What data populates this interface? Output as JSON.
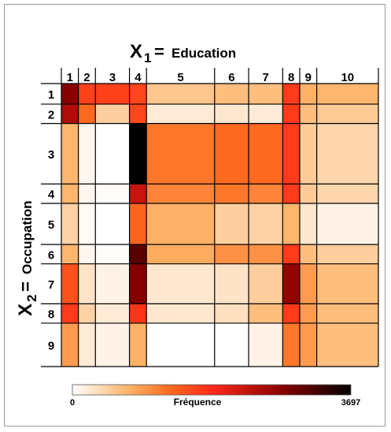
{
  "chart_data": {
    "type": "heatmap",
    "title": "",
    "x_variable": {
      "symbol": "X",
      "subscript": "1",
      "equals": "=",
      "name": "Education"
    },
    "y_variable": {
      "symbol": "X",
      "subscript": "2",
      "equals": "=",
      "name": "Occupation"
    },
    "x_categories": [
      "1",
      "2",
      "3",
      "4",
      "5",
      "6",
      "7",
      "8",
      "9",
      "10"
    ],
    "y_categories": [
      "1",
      "2",
      "3",
      "4",
      "5",
      "6",
      "7",
      "8",
      "9"
    ],
    "x_marginal_share": [
      0.0537,
      0.0537,
      0.1074,
      0.0537,
      0.2148,
      0.1074,
      0.1074,
      0.0537,
      0.0537,
      0.0537
    ],
    "y_marginal_share": [
      0.0726,
      0.0685,
      0.2137,
      0.0685,
      0.1452,
      0.0685,
      0.1411,
      0.0685,
      0.1452
    ],
    "values": [
      [
        2800,
        1650,
        1650,
        1600,
        560,
        640,
        640,
        1700,
        760,
        720
      ],
      [
        2500,
        1300,
        480,
        1600,
        200,
        240,
        200,
        1700,
        640,
        520
      ],
      [
        720,
        80,
        0,
        3697,
        1200,
        1300,
        1300,
        1700,
        520,
        400
      ],
      [
        720,
        80,
        30,
        2300,
        1100,
        1200,
        1100,
        1700,
        520,
        400
      ],
      [
        440,
        50,
        0,
        1350,
        760,
        480,
        440,
        720,
        240,
        120
      ],
      [
        720,
        80,
        30,
        3100,
        800,
        1000,
        1000,
        1700,
        640,
        480
      ],
      [
        1500,
        280,
        120,
        2800,
        240,
        280,
        480,
        2700,
        920,
        640
      ],
      [
        1700,
        440,
        200,
        1750,
        240,
        320,
        640,
        1700,
        920,
        640
      ],
      [
        920,
        200,
        120,
        760,
        0,
        0,
        120,
        1200,
        920,
        640
      ]
    ],
    "colorbar": {
      "label": "Fréquence",
      "min": "0",
      "max": "3697",
      "min_value": 0,
      "max_value": 3697
    },
    "colors": {
      "low": "#ffffff",
      "mid_low": "#fdb46a",
      "mid": "#fd5a14",
      "high": "#ff2a1a",
      "higher": "#8a0000",
      "max": "#000000"
    }
  }
}
